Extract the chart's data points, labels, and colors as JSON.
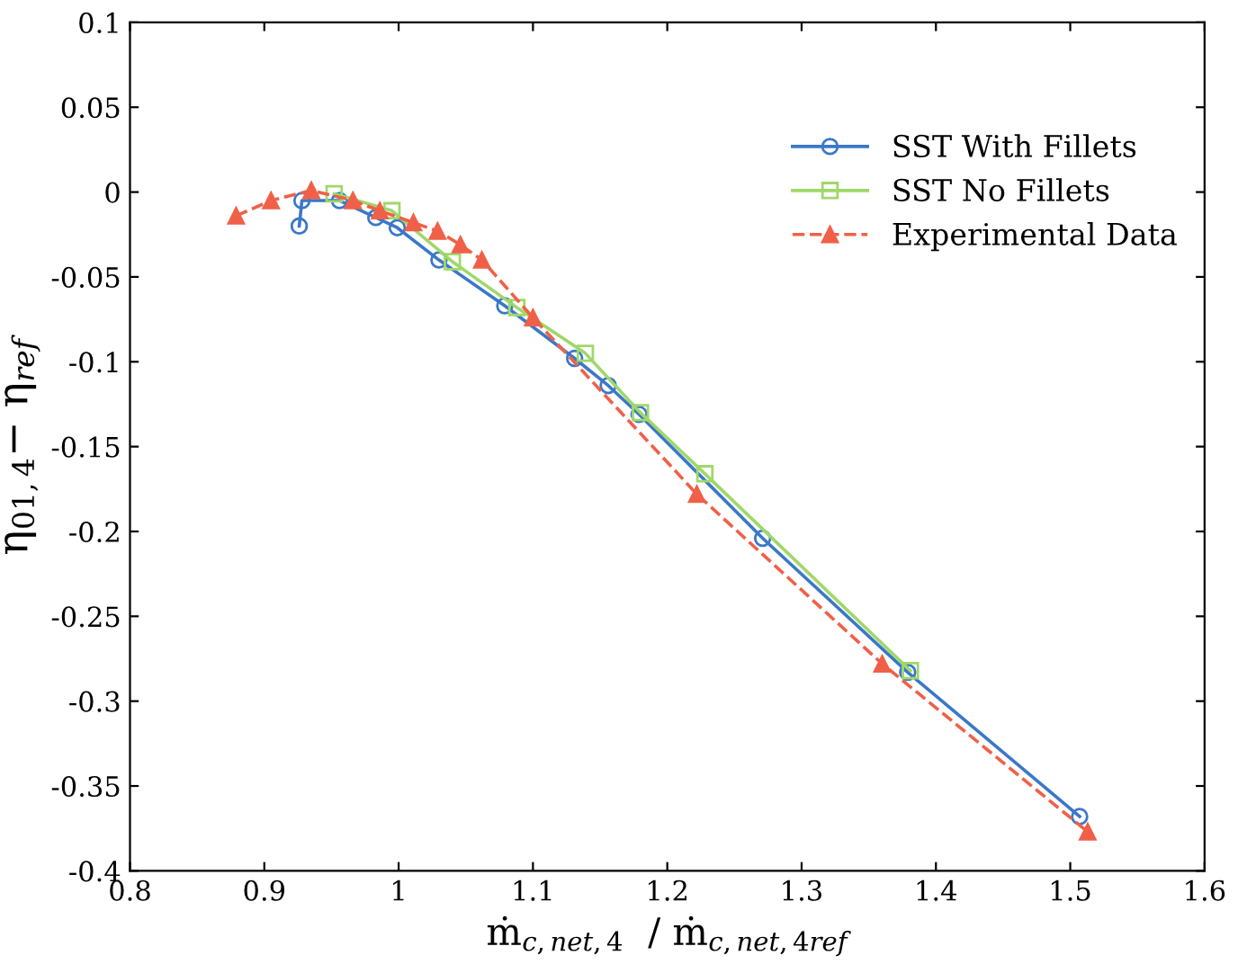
{
  "chart_data": {
    "type": "line",
    "xlabel": "ṁ$_{c,net,4}$  / ṁ$_{c,net,4ref}$",
    "ylabel": "η$_{01,4}$− η$_{ref}$",
    "xlim": [
      0.8,
      1.6
    ],
    "xticks": [
      0.8,
      0.9,
      1,
      1.1,
      1.2,
      1.3,
      1.4,
      1.5,
      1.6
    ],
    "ylim": [
      -0.4,
      0.1
    ],
    "yticks": [
      -0.4,
      -0.35,
      -0.3,
      -0.25,
      -0.2,
      -0.15,
      -0.1,
      -0.05,
      0,
      0.05,
      0.1
    ],
    "grid": false,
    "legend": "top right",
    "series": [
      {
        "name": "SST With Fillets",
        "color": "#3a78c8",
        "marker": "circle",
        "line_style": "solid",
        "x": [
          0.926,
          0.928,
          0.956,
          0.983,
          0.999,
          1.03,
          1.079,
          1.131,
          1.156,
          1.179,
          1.271,
          1.379,
          1.507
        ],
        "values": [
          -0.02,
          -0.005,
          -0.005,
          -0.015,
          -0.021,
          -0.04,
          -0.067,
          -0.098,
          -0.114,
          -0.131,
          -0.204,
          -0.283,
          -0.368
        ]
      },
      {
        "name": "SST No Fillets",
        "color": "#9fd86a",
        "marker": "square",
        "line_style": "solid",
        "x": [
          0.952,
          0.995,
          1.04,
          1.088,
          1.139,
          1.18,
          1.228,
          1.381
        ],
        "values": [
          -0.001,
          -0.011,
          -0.041,
          -0.068,
          -0.095,
          -0.13,
          -0.166,
          -0.282
        ]
      },
      {
        "name": "Experimental Data",
        "color": "#f06048",
        "marker": "triangle",
        "line_style": "dashed",
        "x": [
          0.879,
          0.905,
          0.935,
          0.966,
          0.986,
          1.011,
          1.029,
          1.046,
          1.062,
          1.1,
          1.222,
          1.36,
          1.513
        ],
        "values": [
          -0.014,
          -0.005,
          0.001,
          -0.005,
          -0.011,
          -0.018,
          -0.023,
          -0.031,
          -0.04,
          -0.074,
          -0.178,
          -0.278,
          -0.377
        ]
      }
    ]
  }
}
